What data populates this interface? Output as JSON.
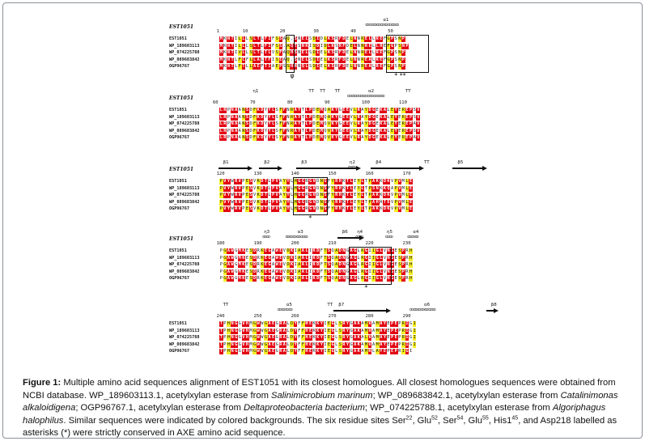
{
  "caption": {
    "fig_label": "Figure 1:",
    "parts": [
      " Multiple amino acid sequences alignment of EST1051 with its closest homologues. All closest homologues sequences were obtained from NCBI database. WP_189603113.1, acetylxylan esterase from ",
      "Salinimicrobium marinum",
      "; WP_089683842.1, acetylxylan esterase from ",
      "Catalinimonas alkaloidigena",
      "; OGP96767.1, acetylxylan esterase from ",
      "Deltaproteobacteria bacterium",
      "; WP_074225788.1, acetylxylan esterase from ",
      "Algoriphagus halophilus",
      ". Similar sequences were indicated by colored backgrounds. The six residue sites Ser",
      "22",
      ", Glu",
      "52",
      ", Ser",
      "54",
      ", Glu",
      "55",
      ", His1",
      "45",
      ", and Asp218 labelled as asterisks (*) were strictly conserved in AXE amino acid sequence."
    ]
  },
  "alignment": {
    "reference": "EST1051",
    "sequence_names": [
      "EST1051",
      "WP_189603113",
      "WP_074225788",
      "WP_089683842",
      "OGP96767"
    ],
    "blocks": [
      {
        "title": "EST1051",
        "structure_labels": [
          "α1"
        ],
        "numbers": [
          "1",
          "10",
          "20",
          "30",
          "40",
          "50"
        ],
        "stars": [
          "φ",
          "* **"
        ],
        "rows": [
          "MKNTILLLSLTLFIFSSAQ.SNELSDIDLKSRFDELNNRELLREFGPSNP",
          "MKNTILLLSLTLFIFSS.AQTSNKISDIDLKSRFDELNNRELLREFGPSNP",
          "MKNTIVLLSLTLTLVSFAQHSNELSDIELKSRFDELNNRELLREFGPSNP",
          "MKNTLFCFLLALTFISEAQ.SNELSDIELKSRFDELNNREALREFGPSNP",
          "MKNTLFTLLAEFTIAEPSSHHNQLSDIELKSRFDELNNREALREFGPSNP"
        ]
      },
      {
        "title": "EST1051",
        "structure_labels": [
          "η1",
          "TT",
          "TT",
          "TT",
          "α2",
          "TT"
        ],
        "numbers": [
          "60",
          "70",
          "80",
          "90",
          "100",
          "110"
        ],
        "stars": [],
        "rows": [
          "LRPNAANSDFKDYYLSFFNRAYTLPDEMQAKYGEEVLRAYDGEKALEYEREPSV",
          "LRPNAANSDFKDYYLSFFNRAYTLPDEMQAKYGEEVLRAYDGEKALEYEREPSV",
          "LRPNAANSDFKDYYLSFFNRAYTLPDEMQVKYGEEVLRAYDGEKALEYEREPAV",
          "LRPNAANSDFKDYYLSFFNRAYTLPDEMQVKYGEEVLRAYDGEKALEYEREPSV",
          "LRPNAANSDFKDYYLSYFNRAYTLPDEMQVKYGEEVLRAYDGEKALEYEREPAV"
        ]
      },
      {
        "title": "EST1051",
        "structure_labels": [
          "β1",
          "β2",
          "β3",
          "η2",
          "β4",
          "TT",
          "β5"
        ],
        "numbers": [
          "120",
          "130",
          "140",
          "150",
          "160",
          "170"
        ],
        "stars": [
          "*"
        ],
        "rows": [
          "PVYWRVPESVRDTLPVAYYLHGGRGVDNSFYRHKTLEYLTPAKKDKVPVMLE",
          "PVYWRVPESVKDTLPVAYYLHGGRGVDNSFYRHKTLEYLTPSNKKQAPVMLE",
          "PVYWRVPESVKDTLPVAYYLHGGRGVDNSFYRHKTLEYLTPAKKDKVPVMLE",
          "PVYWRVPESVKDTLPVAYYLHGGRGVDNSFYRHKTLEYLTPAHATEVPVMLE",
          "PVYWRVPESVKDTLPVAYYLHGGRGVDNSFYRHKTLEYLTPAKKDKVPVMLE"
        ]
      },
      {
        "title": "EST1051",
        "structure_labels": [
          "η3",
          "α3",
          "β6",
          "η4",
          "η5",
          "α4"
        ],
        "numbers": [
          "180",
          "190",
          "200",
          "210",
          "220",
          "230"
        ],
        "stars": [
          "*"
        ],
        "rows": [
          "PGAWGMKESDRKEGAWEVDKIAALIKDFTSQADNGAGLRGIIGLVNGESPRH",
          "PGAWGMKESDRKEGAWEVDKIAALIKDFTSQADNGAGLRGIIGLVNGESPRH",
          "PGAWGMKESDRKEGAWEVDKIAALIKDFTSQADNGAGLRGIIGLVNGESPRH",
          "PGAWGMKESDRKEGAWEVDKIAALIKDFTSQADNGAGLRGIIGLVNGESPRH",
          "PGAWGMKESDRKEGAWEVDKIAALIKDFTSQADNGAGLRGIIGLVNGESPRH"
        ]
      },
      {
        "title": "",
        "structure_labels": [
          "TT",
          "α5",
          "TT",
          "β7",
          "α6",
          "β8"
        ],
        "numbers": [
          "240",
          "250",
          "260",
          "270",
          "280",
          "290"
        ],
        "stars": [],
        "rows": [
          "TPHNGGVHMGWWGAEGRALDYFFHEKKYIEGLSRYGAKAMVAMAYEPEPRIGI",
          "TPHNGGVHMGWWGAEGRALDYFFHEKKYIEGLSRYGAKAMVAMAYEPEPRIGI",
          "TPHNGGVHMGWWGAEGRALDYFFHEKKYIEGLSRYGAKALVAMAYEPEPRIGI",
          "TPHNGGVHMGWWGAEGRALDYFFHEKKYIEGLSRYGAKAMVAMAYEPEPRIGI",
          "TPHNGGVHMGWWGAEGRALDYFFHEKKYIEGLSRYGAKAMKLAYEPEPRIGI"
        ]
      }
    ]
  }
}
